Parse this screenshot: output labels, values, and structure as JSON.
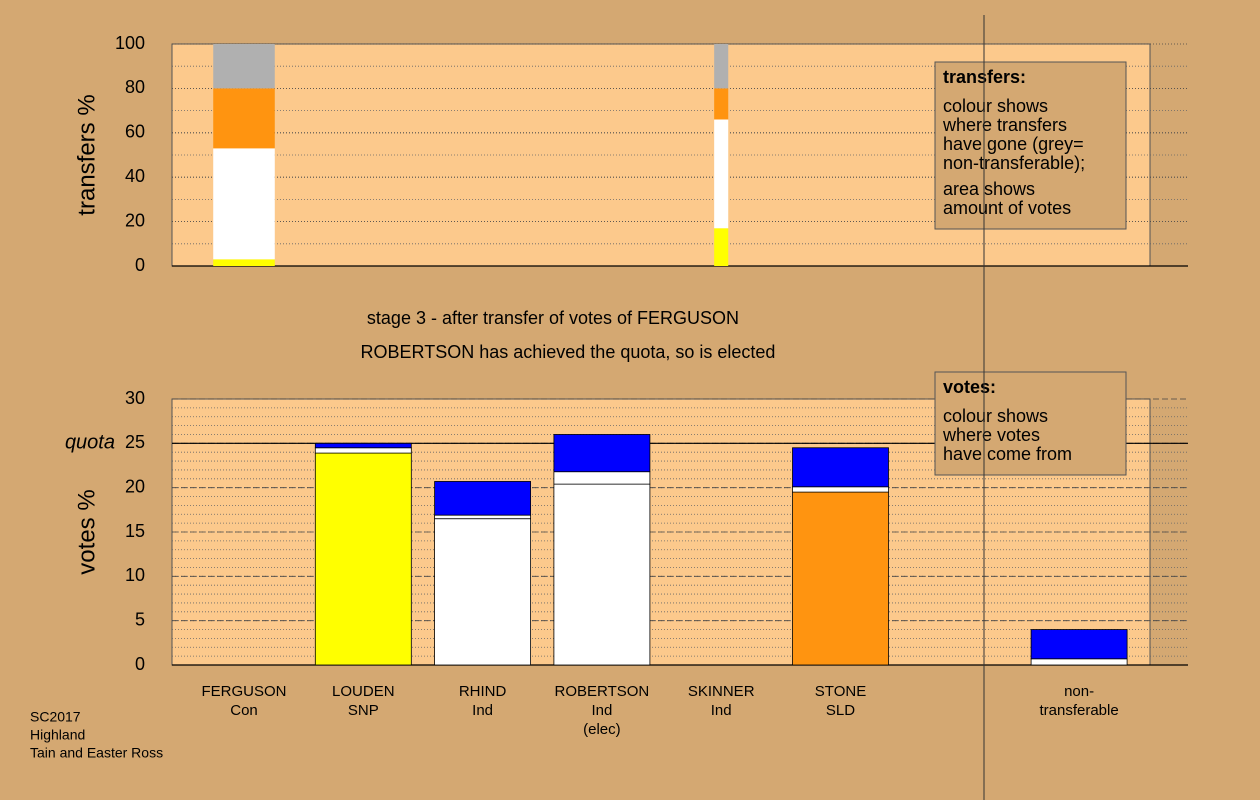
{
  "chart_data": [
    {
      "type": "stacked-bar",
      "ylabel": "transfers %",
      "ylim": [
        0,
        100
      ],
      "yticks": [
        0,
        20,
        40,
        60,
        80,
        100
      ],
      "minor_step": 10,
      "widths": [
        16.2,
        0,
        0,
        0,
        3.7,
        0,
        null,
        0
      ],
      "series": [
        {
          "color": "#ffff00",
          "values": [
            3,
            0,
            0,
            0,
            17,
            0,
            null,
            0
          ]
        },
        {
          "color": "#ffffff",
          "values": [
            50,
            0,
            0,
            0,
            49,
            0,
            null,
            0
          ]
        },
        {
          "color": "#ff9410",
          "values": [
            27,
            0,
            0,
            0,
            14,
            0,
            null,
            0
          ]
        },
        {
          "color": "#b0b0b0",
          "values": [
            20,
            0,
            0,
            0,
            20,
            0,
            null,
            0
          ]
        }
      ],
      "note": {
        "title": "transfers:",
        "paragraphs": [
          [
            "colour shows",
            "where transfers",
            "have gone (grey=",
            "non-transferable);"
          ],
          [
            "area shows",
            "amount of votes"
          ]
        ]
      }
    },
    {
      "type": "stacked-bar",
      "title": "stage 3 - after transfer of votes of FERGUSON",
      "subtitle": "ROBERTSON has achieved the quota, so is elected",
      "ylabel": "votes %",
      "ylim": [
        0,
        30
      ],
      "yticks": [
        0,
        5,
        10,
        15,
        20,
        25,
        30
      ],
      "minor_step": 1,
      "quota": {
        "value": 25,
        "label": "quota"
      },
      "categories": [
        [
          "FERGUSON",
          "Con"
        ],
        [
          "LOUDEN",
          "SNP"
        ],
        [
          "RHIND",
          "Ind"
        ],
        [
          "ROBERTSON",
          "Ind",
          "(elec)"
        ],
        [
          "SKINNER",
          "Ind"
        ],
        [
          "STONE",
          "SLD"
        ],
        null,
        [
          "non-",
          "transferable"
        ]
      ],
      "series": [
        {
          "color": "#ffff00",
          "values": [
            0,
            23.9,
            0,
            0,
            0,
            0,
            null,
            0
          ]
        },
        {
          "color": "#ffffff",
          "values": [
            0,
            0,
            16.5,
            20.4,
            0,
            0,
            null,
            0
          ]
        },
        {
          "color": "#ff9410",
          "values": [
            0,
            0,
            0,
            0,
            0,
            19.5,
            null,
            0
          ]
        },
        {
          "color": "#ffffff",
          "values": [
            0,
            0.6,
            0.4,
            1.4,
            0,
            0.6,
            null,
            0.7
          ]
        },
        {
          "color": "#0000ff",
          "values": [
            0,
            0.5,
            3.8,
            4.2,
            0,
            4.4,
            null,
            3.3
          ]
        }
      ],
      "note": {
        "title": "votes:",
        "paragraphs": [
          [
            "colour shows",
            "where votes",
            "have come from"
          ]
        ]
      }
    }
  ],
  "footer": [
    "SC2017",
    "Highland",
    "Tain and Easter Ross"
  ]
}
